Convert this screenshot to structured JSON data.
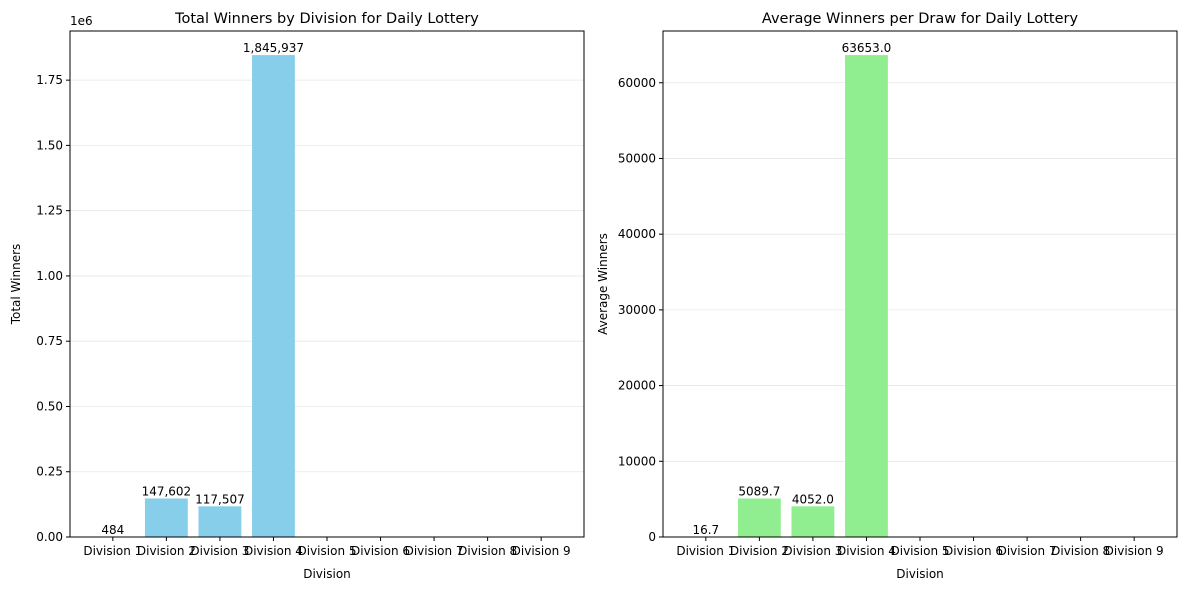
{
  "chart_data": [
    {
      "type": "bar",
      "title": "Total Winners by Division for Daily Lottery",
      "xlabel": "Division",
      "ylabel": "Total Winners",
      "offset_text": "1e6",
      "categories": [
        "Division 1",
        "Division 2",
        "Division 3",
        "Division 4",
        "Division 5",
        "Division 6",
        "Division 7",
        "Division 8",
        "Division 9"
      ],
      "values": [
        484,
        147602,
        117507,
        1845937,
        0,
        0,
        0,
        0,
        0
      ],
      "data_labels": [
        "484",
        "147,602",
        "117,507",
        "1,845,937",
        null,
        null,
        null,
        null,
        null
      ],
      "ylim": [
        0,
        1938234
      ],
      "yticks": [
        0,
        250000,
        500000,
        750000,
        1000000,
        1250000,
        1500000,
        1750000
      ],
      "ytick_labels": [
        "0.00",
        "0.25",
        "0.50",
        "0.75",
        "1.00",
        "1.25",
        "1.50",
        "1.75"
      ],
      "bar_color": "#87ceeb",
      "grid": "y",
      "legend": "none"
    },
    {
      "type": "bar",
      "title": "Average Winners per Draw for Daily Lottery",
      "xlabel": "Division",
      "ylabel": "Average Winners",
      "categories": [
        "Division 1",
        "Division 2",
        "Division 3",
        "Division 4",
        "Division 5",
        "Division 6",
        "Division 7",
        "Division 8",
        "Division 9"
      ],
      "values": [
        16.7,
        5089.7,
        4052.0,
        63653.0,
        0,
        0,
        0,
        0,
        0
      ],
      "data_labels": [
        "16.7",
        "5089.7",
        "4052.0",
        "63653.0",
        null,
        null,
        null,
        null,
        null
      ],
      "ylim": [
        0,
        66836
      ],
      "yticks": [
        0,
        10000,
        20000,
        30000,
        40000,
        50000,
        60000
      ],
      "ytick_labels": [
        "0",
        "10000",
        "20000",
        "30000",
        "40000",
        "50000",
        "60000"
      ],
      "bar_color": "#90ee90",
      "grid": "y",
      "legend": "none"
    }
  ]
}
